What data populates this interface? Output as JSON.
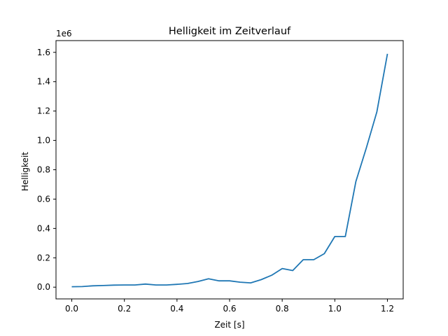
{
  "chart_data": {
    "type": "line",
    "title": "Helligkeit im Zeitverlauf",
    "xlabel": "Zeit [s]",
    "ylabel": "Helligkeit",
    "y_offset_text": "1e6",
    "xlim": [
      -0.06,
      1.26
    ],
    "ylim": [
      -0.08,
      1.68
    ],
    "x_ticks": [
      0.0,
      0.2,
      0.4,
      0.6,
      0.8,
      1.0,
      1.2
    ],
    "x_tick_labels": [
      "0.0",
      "0.2",
      "0.4",
      "0.6",
      "0.8",
      "1.0",
      "1.2"
    ],
    "y_ticks": [
      0.0,
      0.2,
      0.4,
      0.6,
      0.8,
      1.0,
      1.2,
      1.4,
      1.6
    ],
    "y_tick_labels": [
      "0.0",
      "0.2",
      "0.4",
      "0.6",
      "0.8",
      "1.0",
      "1.2",
      "1.4",
      "1.6"
    ],
    "grid": false,
    "series": [
      {
        "color": "#1f77b4",
        "x": [
          0.0,
          0.04,
          0.08,
          0.12,
          0.16,
          0.2,
          0.24,
          0.28,
          0.32,
          0.36,
          0.4,
          0.44,
          0.48,
          0.52,
          0.56,
          0.6,
          0.64,
          0.68,
          0.72,
          0.76,
          0.8,
          0.84,
          0.88,
          0.92,
          0.96,
          1.0,
          1.04,
          1.08,
          1.12,
          1.16,
          1.2
        ],
        "y": [
          0.003,
          0.004,
          0.009,
          0.011,
          0.014,
          0.015,
          0.015,
          0.021,
          0.015,
          0.015,
          0.019,
          0.025,
          0.039,
          0.057,
          0.043,
          0.043,
          0.034,
          0.029,
          0.051,
          0.081,
          0.127,
          0.113,
          0.187,
          0.187,
          0.228,
          0.345,
          0.345,
          0.72,
          0.95,
          1.195,
          1.59
        ]
      }
    ]
  }
}
